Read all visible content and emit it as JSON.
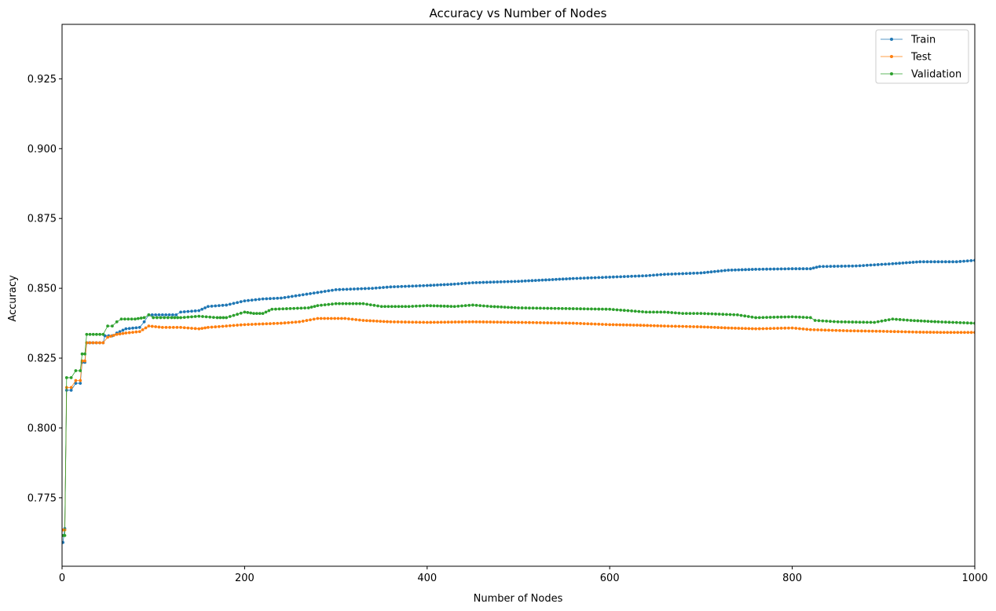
{
  "chart_data": {
    "type": "line",
    "title": "Accuracy vs Number of Nodes",
    "xlabel": "Number of Nodes",
    "ylabel": "Accuracy",
    "xlim": [
      0,
      1000
    ],
    "ylim": [
      0.7505,
      0.9445
    ],
    "xticks": [
      0,
      200,
      400,
      600,
      800,
      1000
    ],
    "yticks": [
      0.775,
      0.8,
      0.825,
      0.85,
      0.875,
      0.9,
      0.925
    ],
    "xtick_labels": [
      "0",
      "200",
      "400",
      "600",
      "800",
      "1000"
    ],
    "ytick_labels": [
      "0.775",
      "0.800",
      "0.825",
      "0.850",
      "0.875",
      "0.900",
      "0.925"
    ],
    "grid": false,
    "legend_position": "top-right",
    "series": [
      {
        "name": "Train",
        "color": "#1f77b4",
        "points": [
          [
            1,
            0.759
          ],
          [
            3,
            0.764
          ],
          [
            5,
            0.8135
          ],
          [
            10,
            0.8135
          ],
          [
            15,
            0.816
          ],
          [
            20,
            0.816
          ],
          [
            22,
            0.8235
          ],
          [
            25,
            0.8235
          ],
          [
            27,
            0.8305
          ],
          [
            30,
            0.8305
          ],
          [
            45,
            0.8305
          ],
          [
            47,
            0.833
          ],
          [
            55,
            0.833
          ],
          [
            60,
            0.834
          ],
          [
            70,
            0.8355
          ],
          [
            85,
            0.836
          ],
          [
            90,
            0.838
          ],
          [
            95,
            0.8405
          ],
          [
            110,
            0.8405
          ],
          [
            125,
            0.8405
          ],
          [
            130,
            0.8415
          ],
          [
            150,
            0.842
          ],
          [
            160,
            0.8435
          ],
          [
            180,
            0.844
          ],
          [
            200,
            0.8455
          ],
          [
            220,
            0.8462
          ],
          [
            240,
            0.8465
          ],
          [
            260,
            0.8475
          ],
          [
            280,
            0.8485
          ],
          [
            300,
            0.8495
          ],
          [
            340,
            0.85
          ],
          [
            360,
            0.8505
          ],
          [
            400,
            0.851
          ],
          [
            430,
            0.8515
          ],
          [
            450,
            0.852
          ],
          [
            500,
            0.8525
          ],
          [
            530,
            0.853
          ],
          [
            560,
            0.8535
          ],
          [
            600,
            0.854
          ],
          [
            640,
            0.8545
          ],
          [
            660,
            0.855
          ],
          [
            700,
            0.8555
          ],
          [
            730,
            0.8565
          ],
          [
            760,
            0.8568
          ],
          [
            800,
            0.857
          ],
          [
            820,
            0.857
          ],
          [
            830,
            0.8578
          ],
          [
            870,
            0.858
          ],
          [
            910,
            0.8588
          ],
          [
            940,
            0.8595
          ],
          [
            980,
            0.8595
          ],
          [
            1000,
            0.86
          ]
        ]
      },
      {
        "name": "Test",
        "color": "#ff7f0e",
        "points": [
          [
            1,
            0.7635
          ],
          [
            3,
            0.7635
          ],
          [
            5,
            0.8145
          ],
          [
            10,
            0.8145
          ],
          [
            15,
            0.817
          ],
          [
            20,
            0.817
          ],
          [
            22,
            0.824
          ],
          [
            25,
            0.824
          ],
          [
            27,
            0.8305
          ],
          [
            45,
            0.8305
          ],
          [
            50,
            0.8325
          ],
          [
            60,
            0.8335
          ],
          [
            70,
            0.834
          ],
          [
            85,
            0.8345
          ],
          [
            95,
            0.8365
          ],
          [
            110,
            0.836
          ],
          [
            130,
            0.836
          ],
          [
            150,
            0.8355
          ],
          [
            160,
            0.836
          ],
          [
            200,
            0.837
          ],
          [
            240,
            0.8375
          ],
          [
            260,
            0.838
          ],
          [
            280,
            0.8392
          ],
          [
            310,
            0.8392
          ],
          [
            330,
            0.8385
          ],
          [
            360,
            0.838
          ],
          [
            400,
            0.8378
          ],
          [
            450,
            0.838
          ],
          [
            500,
            0.8378
          ],
          [
            560,
            0.8375
          ],
          [
            600,
            0.837
          ],
          [
            630,
            0.8368
          ],
          [
            660,
            0.8365
          ],
          [
            700,
            0.8362
          ],
          [
            730,
            0.8358
          ],
          [
            760,
            0.8355
          ],
          [
            800,
            0.8358
          ],
          [
            820,
            0.8352
          ],
          [
            860,
            0.8348
          ],
          [
            900,
            0.8346
          ],
          [
            940,
            0.8343
          ],
          [
            970,
            0.8342
          ],
          [
            1000,
            0.8342
          ]
        ]
      },
      {
        "name": "Validation",
        "color": "#2ca02c",
        "points": [
          [
            1,
            0.7615
          ],
          [
            3,
            0.7615
          ],
          [
            5,
            0.818
          ],
          [
            10,
            0.818
          ],
          [
            15,
            0.8205
          ],
          [
            20,
            0.8205
          ],
          [
            22,
            0.8265
          ],
          [
            25,
            0.8265
          ],
          [
            27,
            0.8335
          ],
          [
            45,
            0.8335
          ],
          [
            50,
            0.8365
          ],
          [
            55,
            0.8365
          ],
          [
            60,
            0.838
          ],
          [
            65,
            0.839
          ],
          [
            80,
            0.839
          ],
          [
            90,
            0.8395
          ],
          [
            95,
            0.8405
          ],
          [
            100,
            0.8395
          ],
          [
            120,
            0.8395
          ],
          [
            130,
            0.8395
          ],
          [
            150,
            0.84
          ],
          [
            170,
            0.8395
          ],
          [
            180,
            0.8395
          ],
          [
            200,
            0.8415
          ],
          [
            210,
            0.841
          ],
          [
            220,
            0.841
          ],
          [
            230,
            0.8425
          ],
          [
            270,
            0.843
          ],
          [
            280,
            0.8438
          ],
          [
            300,
            0.8445
          ],
          [
            330,
            0.8445
          ],
          [
            350,
            0.8435
          ],
          [
            380,
            0.8435
          ],
          [
            400,
            0.8438
          ],
          [
            430,
            0.8435
          ],
          [
            450,
            0.844
          ],
          [
            470,
            0.8435
          ],
          [
            500,
            0.843
          ],
          [
            600,
            0.8425
          ],
          [
            620,
            0.842
          ],
          [
            640,
            0.8415
          ],
          [
            660,
            0.8415
          ],
          [
            680,
            0.841
          ],
          [
            700,
            0.841
          ],
          [
            740,
            0.8405
          ],
          [
            760,
            0.8395
          ],
          [
            800,
            0.8398
          ],
          [
            820,
            0.8395
          ],
          [
            825,
            0.8385
          ],
          [
            850,
            0.838
          ],
          [
            890,
            0.8378
          ],
          [
            910,
            0.839
          ],
          [
            930,
            0.8385
          ],
          [
            960,
            0.838
          ],
          [
            1000,
            0.8375
          ]
        ]
      }
    ]
  }
}
